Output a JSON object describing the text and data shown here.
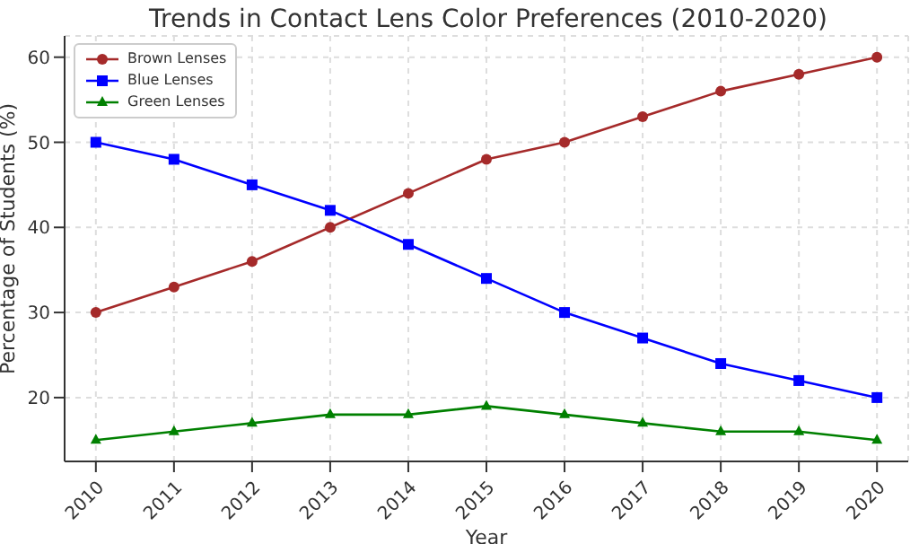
{
  "chart_data": {
    "type": "line",
    "title": "Trends in Contact Lens Color Preferences (2010-2020)",
    "xlabel": "Year",
    "ylabel": "Percentage of Students (%)",
    "categories": [
      "2010",
      "2011",
      "2012",
      "2013",
      "2014",
      "2015",
      "2016",
      "2017",
      "2018",
      "2019",
      "2020"
    ],
    "series": [
      {
        "name": "Brown Lenses",
        "color": "#a52a2a",
        "marker": "circle",
        "values": [
          30,
          33,
          36,
          40,
          44,
          48,
          50,
          53,
          56,
          58,
          60
        ]
      },
      {
        "name": "Blue Lenses",
        "color": "#0000ff",
        "marker": "square",
        "values": [
          50,
          48,
          45,
          42,
          38,
          34,
          30,
          27,
          24,
          22,
          20
        ]
      },
      {
        "name": "Green Lenses",
        "color": "#008000",
        "marker": "triangle",
        "values": [
          15,
          16,
          17,
          18,
          18,
          19,
          18,
          17,
          16,
          16,
          15
        ]
      }
    ],
    "ylim": [
      12.5,
      62.5
    ],
    "yticks": [
      20,
      30,
      40,
      50,
      60
    ],
    "grid": true,
    "legend": "top left",
    "line_style": "solid"
  }
}
